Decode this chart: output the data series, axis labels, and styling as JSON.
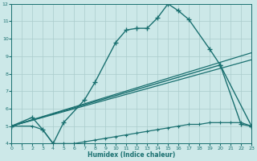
{
  "xlabel": "Humidex (Indice chaleur)",
  "xlim": [
    0,
    23
  ],
  "ylim": [
    4,
    12
  ],
  "xticks": [
    0,
    1,
    2,
    3,
    4,
    5,
    6,
    7,
    8,
    9,
    10,
    11,
    12,
    13,
    14,
    15,
    16,
    17,
    18,
    19,
    20,
    21,
    22,
    23
  ],
  "yticks": [
    4,
    5,
    6,
    7,
    8,
    9,
    10,
    11,
    12
  ],
  "bg_color": "#cce8e8",
  "grid_color": "#aacccc",
  "line_color": "#1a7070",
  "line1_x": [
    0,
    2,
    3,
    4,
    5,
    7,
    8,
    10,
    11,
    12,
    13,
    14,
    15,
    16,
    17,
    19,
    20,
    22,
    23
  ],
  "line1_y": [
    5.0,
    5.5,
    4.8,
    4.0,
    5.2,
    6.5,
    7.5,
    9.8,
    10.5,
    10.6,
    10.6,
    11.2,
    12.0,
    11.6,
    11.1,
    9.4,
    8.5,
    5.1,
    5.0
  ],
  "line2_x": [
    0,
    2,
    3,
    4,
    5,
    6,
    7,
    8,
    9,
    10,
    11,
    12,
    13,
    14,
    15,
    16,
    17,
    18,
    19,
    20,
    21,
    22,
    23
  ],
  "line2_y": [
    5.0,
    5.0,
    4.8,
    4.0,
    4.0,
    4.0,
    4.1,
    4.2,
    4.3,
    4.4,
    4.5,
    4.6,
    4.7,
    4.8,
    4.9,
    5.0,
    5.1,
    5.1,
    5.2,
    5.2,
    5.2,
    5.2,
    5.0
  ],
  "line3_x": [
    0,
    20,
    23
  ],
  "line3_y": [
    5.0,
    8.5,
    5.0
  ],
  "line4_x": [
    0,
    23
  ],
  "line4_y": [
    5.0,
    8.8
  ],
  "line5_x": [
    0,
    23
  ],
  "line5_y": [
    5.0,
    9.2
  ]
}
